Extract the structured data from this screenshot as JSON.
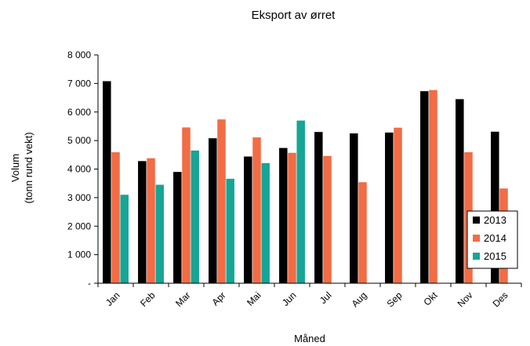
{
  "chart_data": {
    "type": "bar",
    "title": "Eksport av ørret",
    "xlabel": "Måned",
    "ylabel_lines": [
      "Volum",
      "(tonn rund vekt)"
    ],
    "categories": [
      "Jan",
      "Feb",
      "Mar",
      "Apr",
      "Mai",
      "Jun",
      "Jul",
      "Aug",
      "Sep",
      "Okt",
      "Nov",
      "Des"
    ],
    "series": [
      {
        "name": "2013",
        "color": "#000000",
        "values": [
          7080,
          4280,
          3900,
          5080,
          4440,
          4740,
          5300,
          5250,
          5280,
          6730,
          6450,
          5310
        ]
      },
      {
        "name": "2014",
        "color": "#f26c45",
        "values": [
          4590,
          4380,
          5460,
          5740,
          5110,
          4570,
          4460,
          3540,
          5450,
          6770,
          4590,
          3320
        ]
      },
      {
        "name": "2015",
        "color": "#16a596",
        "values": [
          3100,
          3450,
          4650,
          3660,
          4210,
          5700,
          null,
          null,
          null,
          null,
          null,
          null
        ]
      }
    ],
    "ylim": [
      0,
      8000
    ],
    "yticks": [
      0,
      1000,
      2000,
      3000,
      4000,
      5000,
      6000,
      7000,
      8000
    ],
    "ytick_labels": [
      "-",
      "1 000",
      "2 000",
      "3 000",
      "4 000",
      "5 000",
      "6 000",
      "7 000",
      "8 000"
    ],
    "grid": false,
    "legend_position": "bottom-right"
  }
}
